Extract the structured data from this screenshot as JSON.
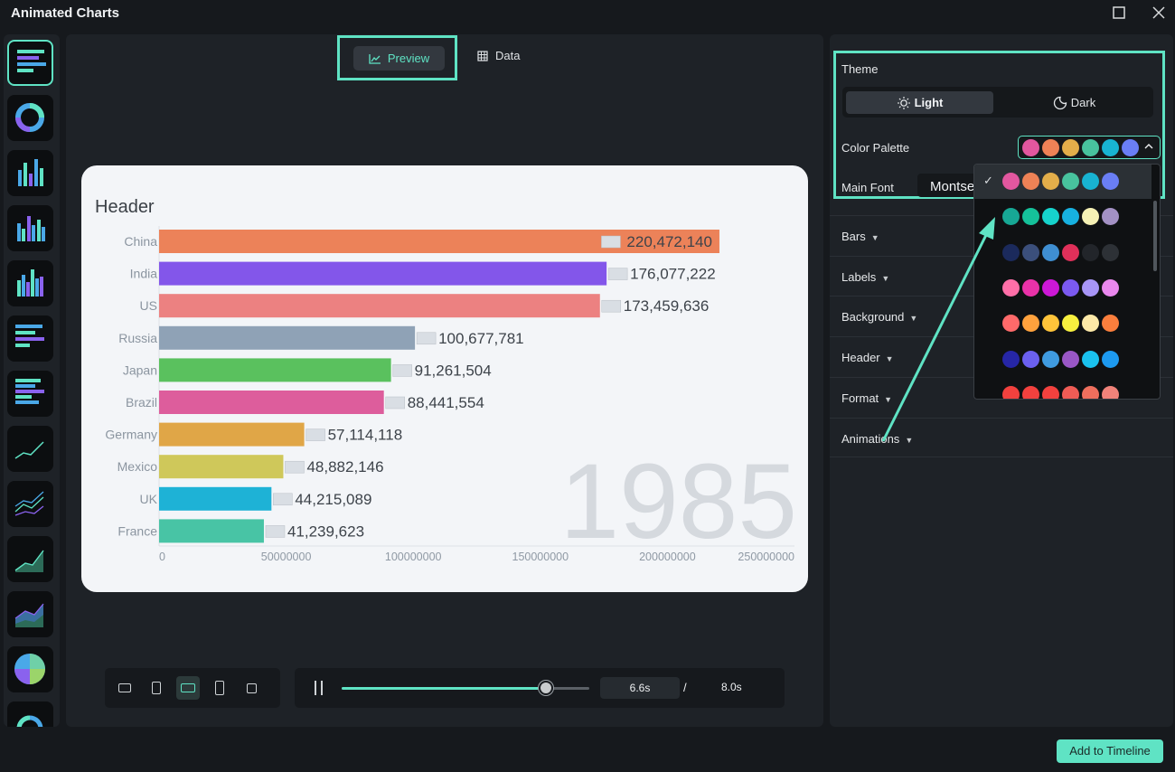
{
  "window": {
    "title": "Animated Charts",
    "maximize_icon": "maximize-icon",
    "close_icon": "close-icon"
  },
  "sidebar": {
    "items": [
      {
        "icon": "bar-race-icon",
        "active": true
      },
      {
        "icon": "donut-chart-icon"
      },
      {
        "icon": "column-chart-icon"
      },
      {
        "icon": "grouped-column-icon"
      },
      {
        "icon": "stacked-column-icon"
      },
      {
        "icon": "horizontal-bar-icon"
      },
      {
        "icon": "stacked-bar-icon"
      },
      {
        "icon": "line-chart-icon"
      },
      {
        "icon": "multi-line-icon"
      },
      {
        "icon": "area-chart-icon"
      },
      {
        "icon": "stacked-area-icon"
      },
      {
        "icon": "pie-chart-icon"
      },
      {
        "icon": "ring-chart-icon"
      }
    ]
  },
  "tabs": {
    "preview": "Preview",
    "data": "Data"
  },
  "chart_data": {
    "type": "bar",
    "title": "Header",
    "year": "1985",
    "categories": [
      "China",
      "India",
      "US",
      "Russia",
      "Japan",
      "Brazil",
      "Germany",
      "Mexico",
      "UK",
      "France"
    ],
    "values": [
      220472140,
      176077222,
      173459636,
      100677781,
      91261504,
      88441554,
      57114118,
      48882146,
      44215089,
      41239623
    ],
    "value_labels": [
      "220,472,140",
      "176,077,222",
      "173,459,636",
      "100,677,781",
      "91,261,504",
      "88,441,554",
      "57,114,118",
      "48,882,146",
      "44,215,089",
      "41,239,623"
    ],
    "colors": [
      "#ec8259",
      "#8356ea",
      "#ec8181",
      "#8fa2b6",
      "#5ac15e",
      "#dd5d9c",
      "#e0a647",
      "#cfc85a",
      "#1eb2d6",
      "#48c4a5"
    ],
    "xlim": [
      0,
      250000000
    ],
    "x_ticks": [
      0,
      50000000,
      100000000,
      150000000,
      200000000,
      250000000
    ],
    "x_tick_labels": [
      "0",
      "50000000",
      "100000000",
      "150000000",
      "200000000",
      "250000000"
    ],
    "grid": false,
    "legend": "none"
  },
  "playback": {
    "current_time": "6.6s",
    "separator": "/",
    "total_time": "8.0s",
    "progress": 0.825
  },
  "aspect_ratios": [
    {
      "name": "ratio-16-9-button",
      "active": false
    },
    {
      "name": "ratio-9-16-button",
      "active": false
    },
    {
      "name": "ratio-wide-button",
      "active": true
    },
    {
      "name": "ratio-tall-button",
      "active": false
    },
    {
      "name": "ratio-1-1-button",
      "active": false
    }
  ],
  "panel": {
    "theme_label": "Theme",
    "theme_light": "Light",
    "theme_dark": "Dark",
    "palette_label": "Color Palette",
    "font_label": "Main Font",
    "font_value": "Montserrat",
    "sections": [
      "Bars",
      "Labels",
      "Background",
      "Header",
      "Format",
      "Animations"
    ]
  },
  "palette_current": [
    "#e2579f",
    "#ee8256",
    "#e3ae4a",
    "#48c39e",
    "#18b3d2",
    "#6a7ef5"
  ],
  "palettes": [
    {
      "selected": true,
      "colors": [
        "#e2579f",
        "#ee8256",
        "#e3ae4a",
        "#48c39e",
        "#18b3d2",
        "#6a7ef5"
      ]
    },
    {
      "selected": false,
      "colors": [
        "#17a895",
        "#15c19a",
        "#16d3cc",
        "#17b1e0",
        "#f5f1b5",
        "#a391c4"
      ]
    },
    {
      "selected": false,
      "colors": [
        "#1b2a5c",
        "#3b4f7b",
        "#3f8fd2",
        "#e0305a",
        "#22252a",
        "#2d3136"
      ]
    },
    {
      "selected": false,
      "colors": [
        "#ff6fa8",
        "#e932a8",
        "#cc18d6",
        "#7b5af0",
        "#a896f7",
        "#ea88ee"
      ]
    },
    {
      "selected": false,
      "colors": [
        "#ff6a6a",
        "#ffa23d",
        "#ffc43a",
        "#f7f03f",
        "#fde9a8",
        "#fb7f3d"
      ]
    },
    {
      "selected": false,
      "colors": [
        "#2626a6",
        "#6b60f0",
        "#3f9be0",
        "#9a57c6",
        "#1ac2ee",
        "#1d9af0"
      ]
    },
    {
      "selected": false,
      "colors": [
        "#f2413e",
        "#f2413e",
        "#f2413e",
        "#ef5c55",
        "#ee6f5d",
        "#f0837a"
      ]
    }
  ],
  "footer": {
    "add_button": "Add to Timeline"
  },
  "accent_color": "#5fe3c4"
}
